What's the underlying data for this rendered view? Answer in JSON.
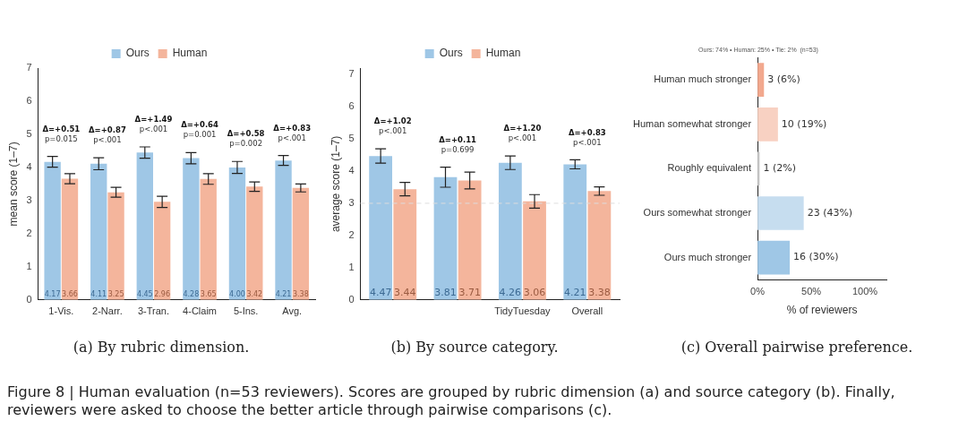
{
  "chart_data": [
    {
      "type": "bar",
      "ylabel": "mean score (1–7)",
      "categories": [
        "1-Vis.",
        "2-Narr.",
        "3-Tran.",
        "4-Claim",
        "5-Ins.",
        "Avg."
      ],
      "series": [
        {
          "name": "Ours",
          "color": "#9fc7e6",
          "values": [
            4.17,
            4.11,
            4.45,
            4.28,
            4.0,
            4.21
          ],
          "errors": [
            0.16,
            0.18,
            0.17,
            0.17,
            0.18,
            0.15
          ],
          "value_labels": [
            "4.17",
            "4.11",
            "4.45",
            "4.28",
            "4.00",
            "4.21"
          ]
        },
        {
          "name": "Human",
          "color": "#f4b59c",
          "values": [
            3.66,
            3.25,
            2.96,
            3.65,
            3.42,
            3.38
          ],
          "errors": [
            0.15,
            0.15,
            0.17,
            0.16,
            0.14,
            0.12
          ],
          "value_labels": [
            "3.66",
            "3.25",
            "2.96",
            "3.65",
            "3.42",
            "3.38"
          ]
        }
      ],
      "ylim": [
        0,
        7
      ],
      "yticks": [
        0,
        1,
        2,
        3,
        4,
        5,
        6,
        7
      ],
      "grid": false,
      "legend": "top",
      "annotations": [
        "(a)  By rubric dimension.",
        "Δ=+0.51\np=0.015",
        "Δ=+0.87\np<.001",
        "Δ=+1.49\np<.001",
        "Δ=+0.64\np=0.001",
        "Δ=+0.58\np=0.002",
        "Δ=+0.83\np<.001"
      ]
    },
    {
      "type": "bar",
      "ylabel": "average score (1–7)",
      "categories": [
        null,
        null,
        "TidyTuesday",
        "Overall"
      ],
      "series": [
        {
          "name": "Ours",
          "color": "#9fc7e6",
          "values": [
            4.47,
            3.81,
            4.26,
            4.21
          ],
          "errors": [
            0.22,
            0.31,
            0.21,
            0.14
          ]
        },
        {
          "name": "Human",
          "color": "#f4b59c",
          "values": [
            3.44,
            3.71,
            3.06,
            3.38
          ],
          "errors": [
            0.21,
            0.26,
            0.21,
            0.13
          ]
        }
      ],
      "ylim": [
        0,
        7.2
      ],
      "yticks": [
        0,
        1,
        2,
        3,
        4,
        5,
        6,
        7
      ],
      "grid": false,
      "legend": "top",
      "data_labels": true,
      "ref_lines": [
        {
          "axis": "y",
          "value": 3,
          "label": null,
          "color": "#dddddd",
          "line_style": "dashed"
        }
      ],
      "annotations": [
        "(b)  By source category.",
        "Δ=+1.02\np<.001",
        "Δ=+0.11\np=0.699",
        "Δ=+1.20\np<.001",
        "Δ=+0.83\np<.001"
      ]
    },
    {
      "type": "bar",
      "orientation": "horizontal",
      "title": "Ours: 74% • Human: 25% • Tie: 2%  (n=53)",
      "xlabel": "% of reviewers",
      "categories": [
        "Human much stronger",
        "Human somewhat stronger",
        "Roughly equivalent",
        "Ours somewhat stronger",
        "Ours much stronger"
      ],
      "values": [
        6,
        19,
        2,
        43,
        30
      ],
      "colors": [
        "#f2a88e",
        "#f8d1c2",
        "#cccccc",
        "#c6ddef",
        "#9fc7e6"
      ],
      "value_labels": [
        "3 (6%)",
        "10 (19%)",
        "1 (2%)",
        "23 (43%)",
        "16 (30%)"
      ],
      "xlim": [
        0,
        120
      ],
      "xticks": [
        {
          "value": 0,
          "label": "0%"
        },
        {
          "value": 50,
          "label": "50%"
        },
        {
          "value": 100,
          "label": "100%"
        }
      ],
      "grid": false,
      "annotations": [
        "(c)  Overall pairwise preference.",
        "Figure 8 | Human evaluation (n=53 reviewers). Scores are grouped by rubric dimension (a) and source category (b). Finally, reviewers were asked to choose the better article through pairwise comparisons (c)."
      ]
    }
  ]
}
